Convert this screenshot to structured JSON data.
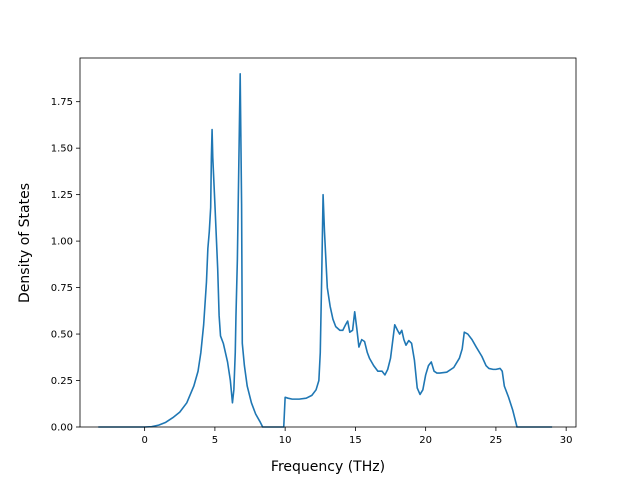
{
  "chart_data": {
    "type": "line",
    "title": "",
    "xlabel": "Frequency (THz)",
    "ylabel": "Density of States",
    "xlim": [
      -4.6,
      30.7
    ],
    "ylim": [
      0,
      1.985
    ],
    "xticks": [
      0,
      5,
      10,
      15,
      20,
      25,
      30
    ],
    "yticks": [
      0.0,
      0.25,
      0.5,
      0.75,
      1.0,
      1.25,
      1.5,
      1.75
    ],
    "xtick_labels": [
      "0",
      "5",
      "10",
      "15",
      "20",
      "25",
      "30"
    ],
    "ytick_labels": [
      "0.00",
      "0.25",
      "0.50",
      "0.75",
      "1.00",
      "1.25",
      "1.50",
      "1.75"
    ],
    "grid": false,
    "legend": "none",
    "series": [
      {
        "color": "#1f77b4",
        "points": [
          [
            -3.3,
            0
          ],
          [
            -2.0,
            0
          ],
          [
            -1.0,
            0
          ],
          [
            0.0,
            0
          ],
          [
            0.5,
            0.002
          ],
          [
            1.0,
            0.01
          ],
          [
            1.5,
            0.025
          ],
          [
            2.0,
            0.05
          ],
          [
            2.5,
            0.08
          ],
          [
            3.0,
            0.13
          ],
          [
            3.5,
            0.22
          ],
          [
            3.8,
            0.3
          ],
          [
            4.0,
            0.4
          ],
          [
            4.2,
            0.55
          ],
          [
            4.4,
            0.78
          ],
          [
            4.5,
            0.96
          ],
          [
            4.6,
            1.05
          ],
          [
            4.7,
            1.18
          ],
          [
            4.75,
            1.45
          ],
          [
            4.8,
            1.6
          ],
          [
            4.85,
            1.45
          ],
          [
            5.0,
            1.2
          ],
          [
            5.2,
            0.85
          ],
          [
            5.3,
            0.6
          ],
          [
            5.4,
            0.49
          ],
          [
            5.6,
            0.45
          ],
          [
            5.9,
            0.35
          ],
          [
            6.1,
            0.25
          ],
          [
            6.25,
            0.13
          ],
          [
            6.35,
            0.2
          ],
          [
            6.45,
            0.4
          ],
          [
            6.5,
            0.6
          ],
          [
            6.6,
            0.9
          ],
          [
            6.7,
            1.4
          ],
          [
            6.8,
            1.9
          ],
          [
            6.9,
            1.2
          ],
          [
            6.95,
            0.45
          ],
          [
            7.1,
            0.33
          ],
          [
            7.3,
            0.22
          ],
          [
            7.6,
            0.13
          ],
          [
            7.9,
            0.07
          ],
          [
            8.2,
            0.03
          ],
          [
            8.4,
            0
          ],
          [
            9.0,
            0
          ],
          [
            9.9,
            0
          ],
          [
            10.0,
            0.16
          ],
          [
            10.2,
            0.155
          ],
          [
            10.5,
            0.15
          ],
          [
            11.0,
            0.15
          ],
          [
            11.5,
            0.155
          ],
          [
            11.9,
            0.17
          ],
          [
            12.2,
            0.2
          ],
          [
            12.4,
            0.25
          ],
          [
            12.5,
            0.4
          ],
          [
            12.6,
            0.8
          ],
          [
            12.7,
            1.25
          ],
          [
            12.8,
            1.05
          ],
          [
            12.9,
            0.9
          ],
          [
            13.0,
            0.75
          ],
          [
            13.2,
            0.65
          ],
          [
            13.4,
            0.58
          ],
          [
            13.6,
            0.54
          ],
          [
            13.9,
            0.52
          ],
          [
            14.1,
            0.52
          ],
          [
            14.3,
            0.55
          ],
          [
            14.45,
            0.57
          ],
          [
            14.6,
            0.51
          ],
          [
            14.8,
            0.52
          ],
          [
            14.95,
            0.62
          ],
          [
            15.1,
            0.53
          ],
          [
            15.25,
            0.43
          ],
          [
            15.45,
            0.47
          ],
          [
            15.65,
            0.46
          ],
          [
            15.85,
            0.4
          ],
          [
            16.0,
            0.37
          ],
          [
            16.3,
            0.33
          ],
          [
            16.6,
            0.3
          ],
          [
            16.9,
            0.3
          ],
          [
            17.1,
            0.28
          ],
          [
            17.3,
            0.31
          ],
          [
            17.5,
            0.37
          ],
          [
            17.7,
            0.49
          ],
          [
            17.8,
            0.55
          ],
          [
            18.0,
            0.52
          ],
          [
            18.15,
            0.5
          ],
          [
            18.3,
            0.52
          ],
          [
            18.45,
            0.47
          ],
          [
            18.6,
            0.44
          ],
          [
            18.8,
            0.465
          ],
          [
            19.0,
            0.45
          ],
          [
            19.2,
            0.36
          ],
          [
            19.4,
            0.21
          ],
          [
            19.6,
            0.175
          ],
          [
            19.8,
            0.2
          ],
          [
            20.0,
            0.28
          ],
          [
            20.2,
            0.33
          ],
          [
            20.4,
            0.35
          ],
          [
            20.6,
            0.3
          ],
          [
            20.8,
            0.29
          ],
          [
            21.0,
            0.29
          ],
          [
            21.5,
            0.295
          ],
          [
            22.0,
            0.32
          ],
          [
            22.4,
            0.37
          ],
          [
            22.6,
            0.42
          ],
          [
            22.75,
            0.51
          ],
          [
            23.0,
            0.5
          ],
          [
            23.3,
            0.47
          ],
          [
            23.6,
            0.43
          ],
          [
            24.0,
            0.38
          ],
          [
            24.3,
            0.33
          ],
          [
            24.5,
            0.315
          ],
          [
            24.8,
            0.31
          ],
          [
            25.0,
            0.31
          ],
          [
            25.3,
            0.315
          ],
          [
            25.45,
            0.3
          ],
          [
            25.6,
            0.22
          ],
          [
            25.9,
            0.16
          ],
          [
            26.2,
            0.09
          ],
          [
            26.5,
            0
          ],
          [
            27.0,
            0
          ],
          [
            28.0,
            0
          ],
          [
            29.0,
            0
          ]
        ]
      }
    ]
  }
}
